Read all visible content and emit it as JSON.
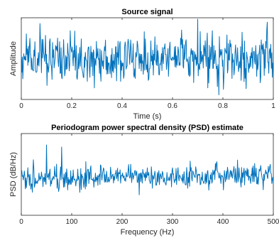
{
  "colors": {
    "series": "#0072BD",
    "axes": "#262626"
  },
  "chart_data": [
    {
      "type": "line",
      "title": "Source signal",
      "xlabel": "Time (s)",
      "ylabel": "Amplitude",
      "xlim": [
        0,
        1
      ],
      "xticks": [
        0,
        0.2,
        0.4,
        0.6,
        0.8,
        1
      ],
      "xtick_labels": [
        "0",
        "0.2",
        "0.4",
        "0.6",
        "0.8",
        "1"
      ],
      "yticks_shown": false,
      "grid": false,
      "series": [
        {
          "description_of_values": "approximately zero-mean noisy signal, amplitude about -2.5 to 2.5"
        }
      ]
    },
    {
      "type": "line",
      "title": "Periodogram power spectral density (PSD) estimate",
      "xlabel": "Frequency (Hz)",
      "ylabel": "PSD (dB/Hz)",
      "xlim": [
        0,
        500
      ],
      "xticks": [
        0,
        100,
        200,
        300,
        400,
        500
      ],
      "xtick_labels": [
        "0",
        "100",
        "200",
        "300",
        "400",
        "500"
      ],
      "yticks_shown": false,
      "grid": false,
      "series": [
        {
          "peaks_hz": [
            50,
            80
          ]
        }
      ]
    }
  ]
}
